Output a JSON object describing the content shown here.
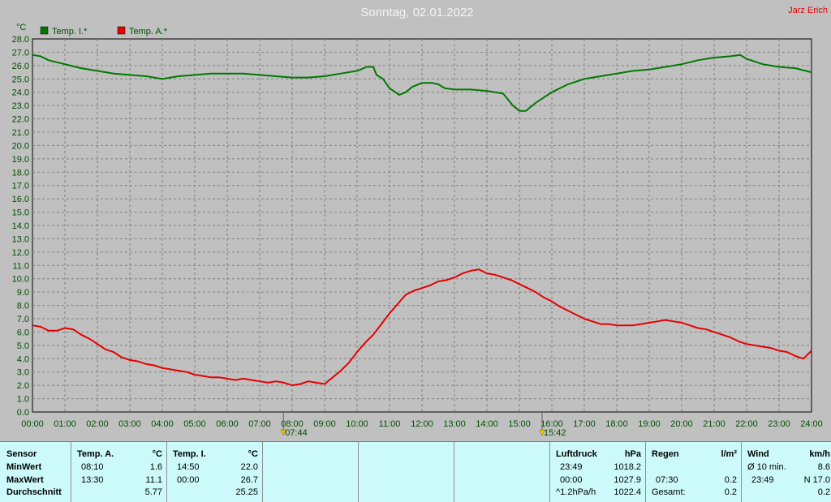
{
  "chart_data": {
    "type": "line",
    "title": "Sonntag, 02.01.2022",
    "author": "Jarz Erich",
    "ylabel": "°C",
    "ylim": [
      0,
      28
    ],
    "yticks": [
      "0.0",
      "1.0",
      "2.0",
      "3.0",
      "4.0",
      "5.0",
      "6.0",
      "7.0",
      "8.0",
      "9.0",
      "10.0",
      "11.0",
      "12.0",
      "13.0",
      "14.0",
      "15.0",
      "16.0",
      "17.0",
      "18.0",
      "19.0",
      "20.0",
      "21.0",
      "22.0",
      "23.0",
      "24.0",
      "25.0",
      "26.0",
      "27.0",
      "28.0"
    ],
    "xlim": [
      0,
      24
    ],
    "xticks": [
      "00:00",
      "01:00",
      "02:00",
      "03:00",
      "04:00",
      "05:00",
      "06:00",
      "07:00",
      "08:00",
      "09:00",
      "10:00",
      "11:00",
      "12:00",
      "13:00",
      "14:00",
      "15:00",
      "16:00",
      "17:00",
      "18:00",
      "19:00",
      "20:00",
      "21:00",
      "22:00",
      "23:00",
      "24:00"
    ],
    "grid": true,
    "legend_position": "top-left",
    "events": [
      {
        "label": "07:44",
        "x": 7.73,
        "symbol": "sunrise"
      },
      {
        "label": "15:42",
        "x": 15.7,
        "symbol": "sunset"
      }
    ],
    "series": [
      {
        "name": "Temp. I.*",
        "color": "#007800",
        "x": [
          0,
          0.25,
          0.5,
          1,
          1.5,
          2,
          2.5,
          3,
          3.5,
          4,
          4.5,
          5,
          5.5,
          6,
          6.5,
          7,
          7.5,
          8,
          8.5,
          9,
          9.5,
          10,
          10.3,
          10.5,
          10.6,
          10.8,
          11,
          11.3,
          11.5,
          11.7,
          12,
          12.3,
          12.5,
          12.7,
          13,
          13.5,
          14,
          14.5,
          14.8,
          15,
          15.2,
          15.5,
          16,
          16.5,
          17,
          17.5,
          18,
          18.5,
          19,
          19.5,
          20,
          20.5,
          21,
          21.5,
          21.8,
          22,
          22.5,
          23,
          23.5,
          24
        ],
        "values": [
          26.8,
          26.7,
          26.4,
          26.1,
          25.8,
          25.6,
          25.4,
          25.3,
          25.2,
          25.0,
          25.2,
          25.3,
          25.4,
          25.4,
          25.4,
          25.3,
          25.2,
          25.1,
          25.1,
          25.2,
          25.4,
          25.6,
          25.9,
          25.9,
          25.3,
          25.0,
          24.3,
          23.8,
          24.0,
          24.4,
          24.7,
          24.7,
          24.6,
          24.3,
          24.2,
          24.2,
          24.1,
          23.9,
          23.0,
          22.6,
          22.6,
          23.2,
          24.0,
          24.6,
          25.0,
          25.2,
          25.4,
          25.6,
          25.7,
          25.9,
          26.1,
          26.4,
          26.6,
          26.7,
          26.8,
          26.5,
          26.1,
          25.9,
          25.8,
          25.5
        ]
      },
      {
        "name": "Temp. A.*",
        "color": "#e60000",
        "x": [
          0,
          0.25,
          0.5,
          0.75,
          1,
          1.25,
          1.5,
          1.75,
          2,
          2.25,
          2.5,
          2.75,
          3,
          3.25,
          3.5,
          3.75,
          4,
          4.25,
          4.5,
          4.75,
          5,
          5.25,
          5.5,
          5.75,
          6,
          6.25,
          6.5,
          6.75,
          7,
          7.25,
          7.5,
          7.75,
          8,
          8.25,
          8.5,
          8.75,
          9,
          9.25,
          9.5,
          9.75,
          10,
          10.25,
          10.5,
          10.75,
          11,
          11.25,
          11.5,
          11.75,
          12,
          12.25,
          12.5,
          12.75,
          13,
          13.25,
          13.5,
          13.75,
          14,
          14.25,
          14.5,
          14.75,
          15,
          15.25,
          15.5,
          15.75,
          16,
          16.25,
          16.5,
          16.75,
          17,
          17.25,
          17.5,
          17.75,
          18,
          18.25,
          18.5,
          18.75,
          19,
          19.25,
          19.5,
          19.75,
          20,
          20.25,
          20.5,
          20.75,
          21,
          21.25,
          21.5,
          21.75,
          22,
          22.25,
          22.5,
          22.75,
          23,
          23.25,
          23.5,
          23.75,
          24
        ],
        "values": [
          6.5,
          6.4,
          6.1,
          6.1,
          6.3,
          6.2,
          5.8,
          5.5,
          5.1,
          4.7,
          4.5,
          4.1,
          3.9,
          3.8,
          3.6,
          3.5,
          3.3,
          3.2,
          3.1,
          3.0,
          2.8,
          2.7,
          2.6,
          2.6,
          2.5,
          2.4,
          2.5,
          2.4,
          2.3,
          2.2,
          2.3,
          2.2,
          2.0,
          2.1,
          2.3,
          2.2,
          2.1,
          2.6,
          3.1,
          3.7,
          4.5,
          5.2,
          5.8,
          6.6,
          7.4,
          8.1,
          8.8,
          9.1,
          9.3,
          9.5,
          9.8,
          9.9,
          10.1,
          10.4,
          10.6,
          10.7,
          10.4,
          10.3,
          10.1,
          9.9,
          9.6,
          9.3,
          9.0,
          8.6,
          8.3,
          7.9,
          7.6,
          7.3,
          7.0,
          6.8,
          6.6,
          6.6,
          6.5,
          6.5,
          6.5,
          6.6,
          6.7,
          6.8,
          6.9,
          6.8,
          6.7,
          6.5,
          6.3,
          6.2,
          6.0,
          5.8,
          5.6,
          5.3,
          5.1,
          5.0,
          4.9,
          4.8,
          4.6,
          4.5,
          4.2,
          4.0,
          4.6
        ]
      }
    ]
  },
  "table": {
    "col1": {
      "header": "Sensor",
      "rows": [
        "MinWert",
        "MaxWert",
        "Durchschnitt"
      ]
    },
    "col2": {
      "header": "Temp. A.",
      "unit": "°C",
      "times": [
        "08:10",
        "13:30",
        ""
      ],
      "values": [
        "1.6",
        "11.1",
        "5.77"
      ]
    },
    "col3": {
      "header": "Temp. I.",
      "unit": "°C",
      "times": [
        "14:50",
        "00:00",
        ""
      ],
      "values": [
        "22.0",
        "26.7",
        "25.25"
      ]
    },
    "luftdruck": {
      "header": "Luftdruck",
      "unit": "hPa",
      "times": [
        "23:49",
        "00:00",
        "^1.2hPa/h"
      ],
      "values": [
        "1018.2",
        "1027.9",
        "1022.4"
      ]
    },
    "regen": {
      "header": "Regen",
      "unit": "l/m²",
      "times": [
        "",
        "07:30",
        "Gesamt:"
      ],
      "values": [
        "",
        "0.2",
        "0.2"
      ]
    },
    "wind": {
      "header": "Wind",
      "unit": "km/h",
      "times": [
        "Ø 10 min.",
        "23:49",
        ""
      ],
      "values": [
        "8.6",
        "N 17.0",
        "0.2"
      ]
    }
  }
}
